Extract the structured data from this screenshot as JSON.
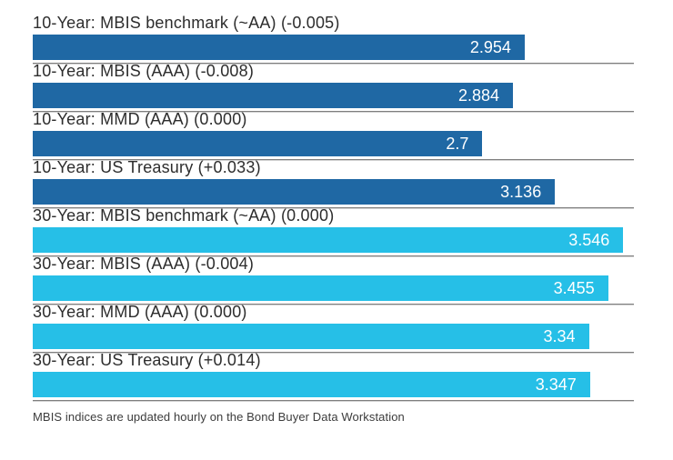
{
  "chart_data": {
    "type": "bar",
    "orientation": "horizontal",
    "title": "",
    "xlabel": "",
    "ylabel": "",
    "grid": false,
    "legend": "none",
    "xlim": [
      0,
      3.61
    ],
    "categories": [
      "10-Year: MBIS benchmark (~AA) (-0.005)",
      "10-Year: MBIS (AAA) (-0.008)",
      "10-Year: MMD (AAA) (0.000)",
      "10-Year: US Treasury (+0.033)",
      "30-Year: MBIS benchmark (~AA) (0.000)",
      "30-Year: MBIS (AAA) (-0.004)",
      "30-Year: MMD (AAA) (0.000)",
      "30-Year: US Treasury (+0.014)"
    ],
    "values": [
      2.954,
      2.884,
      2.7,
      3.136,
      3.546,
      3.455,
      3.34,
      3.347
    ],
    "value_labels": [
      "2.954",
      "2.884",
      "2.7",
      "3.136",
      "3.546",
      "3.455",
      "3.34",
      "3.347"
    ],
    "groups": [
      "10-Year",
      "10-Year",
      "10-Year",
      "10-Year",
      "30-Year",
      "30-Year",
      "30-Year",
      "30-Year"
    ],
    "changes": [
      -0.005,
      -0.008,
      0.0,
      0.033,
      0.0,
      -0.004,
      0.0,
      0.014
    ]
  },
  "colors": {
    "bar_10_year": "#1f68a4",
    "bar_30_year": "#26bfe7",
    "value_text": "#ffffff",
    "label_text": "#2d2d2d",
    "divider": "#7e7e7e"
  },
  "footer": {
    "note": "MBIS indices are updated hourly on the Bond Buyer Data Workstation"
  }
}
